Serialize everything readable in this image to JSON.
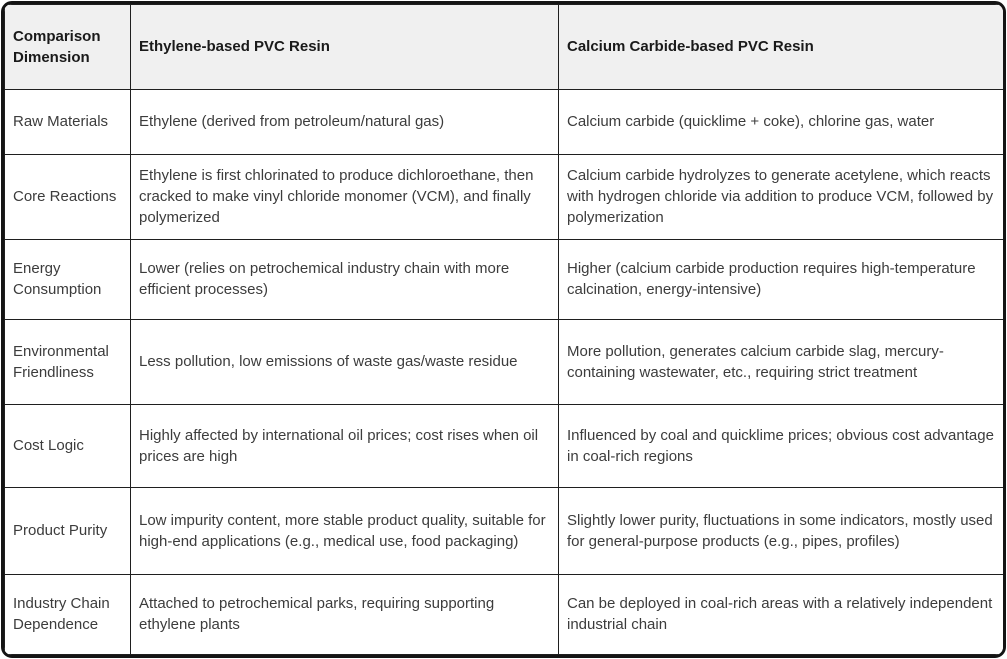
{
  "table": {
    "title_semantic": "PVC Resin production route comparison table",
    "colors": {
      "header_bg": "#f0f0f0",
      "body_bg": "#ffffff",
      "grid_border": "#1f1f1f",
      "outer_border": "#141414",
      "header_text": "#1a1a1a",
      "body_text": "#3c3c3c"
    },
    "columns": [
      "Comparison Dimension",
      "Ethylene-based PVC Resin",
      "Calcium Carbide-based PVC Resin"
    ],
    "rows": [
      [
        "Raw Materials",
        "Ethylene (derived from petroleum/natural gas)",
        "Calcium carbide (quicklime + coke), chlorine gas, water"
      ],
      [
        "Core Reactions",
        "Ethylene is first chlorinated to produce dichloroethane, then cracked to make vinyl chloride monomer (VCM), and finally polymerized",
        "Calcium carbide hydrolyzes to generate acetylene, which reacts with hydrogen chloride via addition to produce VCM, followed by polymerization"
      ],
      [
        "Energy Consumption",
        "Lower (relies on petrochemical industry chain with more efficient processes)",
        "Higher (calcium carbide production requires high-temperature calcination, energy-intensive)"
      ],
      [
        "Environmental Friendliness",
        "Less pollution, low emissions of waste gas/waste residue",
        "More pollution, generates calcium carbide slag, mercury-containing wastewater, etc., requiring strict treatment"
      ],
      [
        "Cost Logic",
        "Highly affected by international oil prices; cost rises when oil prices are high",
        "Influenced by coal and quicklime prices; obvious cost advantage in coal-rich regions"
      ],
      [
        "Product Purity",
        "Low impurity content, more stable product quality, suitable for high-end applications (e.g., medical use, food packaging)",
        "Slightly lower purity, fluctuations in some indicators, mostly used for general-purpose products (e.g., pipes, profiles)"
      ],
      [
        "Industry Chain Dependence",
        "Attached to petrochemical parks, requiring supporting ethylene plants",
        "Can be deployed in coal-rich areas with a relatively independent industrial chain"
      ]
    ]
  }
}
